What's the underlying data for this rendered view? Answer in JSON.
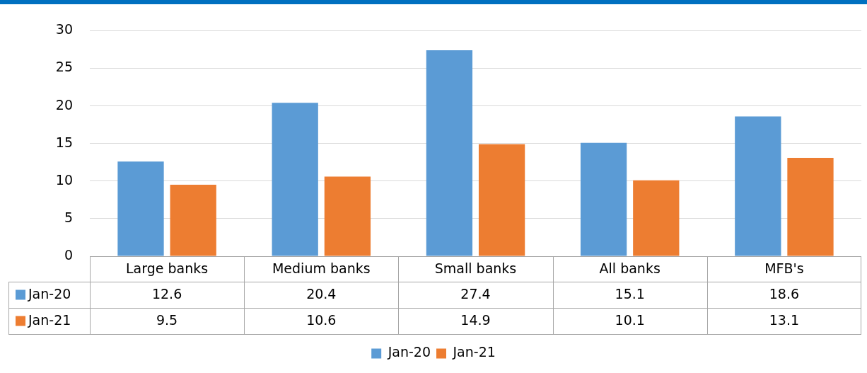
{
  "chart_data": {
    "type": "bar",
    "categories": [
      "Large banks",
      "Medium banks",
      "Small banks",
      "All banks",
      "MFB's"
    ],
    "series": [
      {
        "name": "Jan-20",
        "color": "#5b9bd5",
        "values": [
          12.6,
          20.4,
          27.4,
          15.1,
          18.6
        ]
      },
      {
        "name": "Jan-21",
        "color": "#ed7d31",
        "values": [
          9.5,
          10.6,
          14.9,
          10.1,
          13.1
        ]
      }
    ],
    "ylim": [
      0,
      30
    ],
    "yticks": [
      0,
      5,
      10,
      15,
      20,
      25,
      30
    ],
    "grid": "y",
    "legend": "bottom",
    "data_labels": true
  }
}
